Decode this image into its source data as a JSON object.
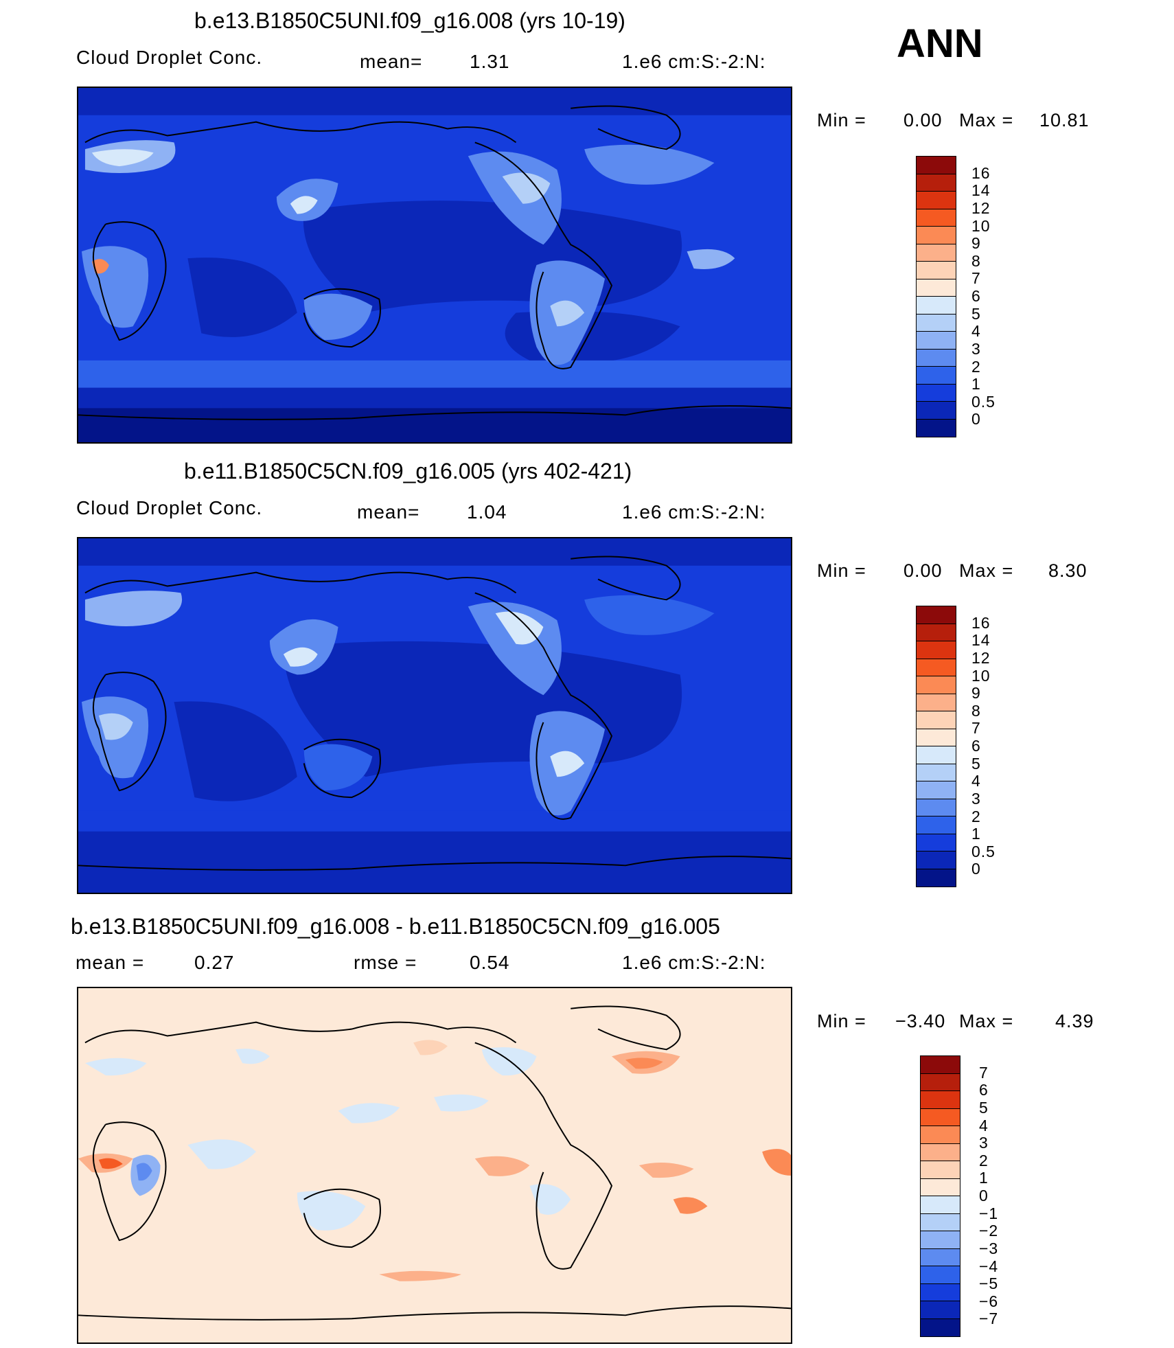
{
  "season": "ANN",
  "panels": [
    {
      "title": "b.e13.B1850C5UNI.f09_g16.008 (yrs 10-19)",
      "left_label": "Cloud Droplet Conc.",
      "mid_label": "mean=",
      "mid_value": "1.31",
      "units": "1.e6 cm:S:-2:N:",
      "min_label": "Min =",
      "min_value": "0.00",
      "max_label": "Max =",
      "max_value": "10.81",
      "colorbar": {
        "labels": [
          "16",
          "14",
          "12",
          "10",
          "9",
          "8",
          "7",
          "6",
          "5",
          "4",
          "3",
          "2",
          "1",
          "0.5",
          "0"
        ],
        "colors": [
          "#8c0a0a",
          "#b61f0c",
          "#dc3410",
          "#f55a22",
          "#fb8a55",
          "#fcb08a",
          "#fdd3b7",
          "#fde9d8",
          "#d7e9fa",
          "#b4d0f7",
          "#8fb2f4",
          "#5d8bf0",
          "#2e62ea",
          "#153ddc",
          "#0b27b8",
          "#031489"
        ]
      },
      "map_data": {
        "variable": "Cloud Droplet Conc.",
        "units": "1.e6 cm:S:-2:N:",
        "mean": 1.31,
        "min": 0.0,
        "max": 10.81
      }
    },
    {
      "title": "b.e11.B1850C5CN.f09_g16.005 (yrs 402-421)",
      "left_label": "Cloud Droplet Conc.",
      "mid_label": "mean=",
      "mid_value": "1.04",
      "units": "1.e6 cm:S:-2:N:",
      "min_label": "Min =",
      "min_value": "0.00",
      "max_label": "Max =",
      "max_value": "8.30",
      "colorbar": {
        "labels": [
          "16",
          "14",
          "12",
          "10",
          "9",
          "8",
          "7",
          "6",
          "5",
          "4",
          "3",
          "2",
          "1",
          "0.5",
          "0"
        ],
        "colors": [
          "#8c0a0a",
          "#b61f0c",
          "#dc3410",
          "#f55a22",
          "#fb8a55",
          "#fcb08a",
          "#fdd3b7",
          "#fde9d8",
          "#d7e9fa",
          "#b4d0f7",
          "#8fb2f4",
          "#5d8bf0",
          "#2e62ea",
          "#153ddc",
          "#0b27b8",
          "#031489"
        ]
      },
      "map_data": {
        "variable": "Cloud Droplet Conc.",
        "units": "1.e6 cm:S:-2:N:",
        "mean": 1.04,
        "min": 0.0,
        "max": 8.3
      }
    },
    {
      "title": "b.e13.B1850C5UNI.f09_g16.008 - b.e11.B1850C5CN.f09_g16.005",
      "left_label": "mean =",
      "left_value": "0.27",
      "mid_label": "rmse =",
      "mid_value": "0.54",
      "units": "1.e6 cm:S:-2:N:",
      "min_label": "Min =",
      "min_value": "−3.40",
      "max_label": "Max =",
      "max_value": "4.39",
      "colorbar": {
        "labels": [
          "7",
          "6",
          "5",
          "4",
          "3",
          "2",
          "1",
          "0",
          "−1",
          "−2",
          "−3",
          "−4",
          "−5",
          "−6",
          "−7"
        ],
        "colors": [
          "#8c0a0a",
          "#b61f0c",
          "#dc3410",
          "#f55a22",
          "#fb8a55",
          "#fcb08a",
          "#fdd3b7",
          "#fde9d8",
          "#d7e9fa",
          "#b4d0f7",
          "#8fb2f4",
          "#5d8bf0",
          "#2e62ea",
          "#153ddc",
          "#0b27b8",
          "#031489"
        ]
      },
      "map_data": {
        "variable": "difference",
        "units": "1.e6 cm:S:-2:N:",
        "mean": 0.27,
        "rmse": 0.54,
        "min": -3.4,
        "max": 4.39
      }
    }
  ]
}
